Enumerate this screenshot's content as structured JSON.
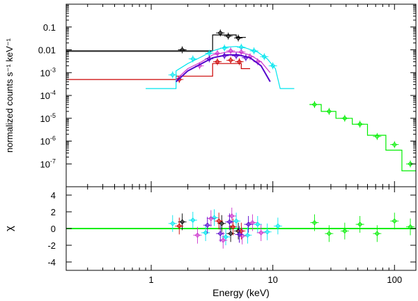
{
  "chart_data": [
    {
      "type": "scatter",
      "panel": "spectrum",
      "ylabel": "normalized counts s⁻¹ keV⁻¹",
      "xscale": "log",
      "yscale": "log",
      "xlim": [
        0.2,
        150
      ],
      "ylim": [
        1e-08,
        1.0
      ],
      "yticks": [
        {
          "value": 0.1,
          "mant": "0.1",
          "exp": ""
        },
        {
          "value": 0.01,
          "mant": "0.01",
          "exp": ""
        },
        {
          "value": 0.001,
          "mant": "10",
          "exp": "-3"
        },
        {
          "value": 0.0001,
          "mant": "10",
          "exp": "-4"
        },
        {
          "value": 1e-05,
          "mant": "10",
          "exp": "-5"
        },
        {
          "value": 1e-06,
          "mant": "10",
          "exp": "-6"
        },
        {
          "value": 1e-07,
          "mant": "10",
          "exp": "-7"
        }
      ],
      "series": [
        {
          "color": "#000000",
          "model": [
            [
              0.2,
              0.009
            ],
            [
              3.2,
              0.009
            ],
            [
              3.2,
              0.045
            ],
            [
              5.0,
              0.045
            ],
            [
              5.0,
              0.035
            ],
            [
              6.0,
              0.035
            ]
          ],
          "points": [
            [
              1.8,
              0.01
            ],
            [
              3.7,
              0.055
            ],
            [
              4.3,
              0.04
            ],
            [
              5.2,
              0.033
            ]
          ]
        },
        {
          "color": "#333333",
          "model": [
            [
              0.2,
              0.0085
            ],
            [
              3.2,
              0.0085
            ]
          ],
          "points": []
        },
        {
          "color": "#cc0000",
          "model": [
            [
              0.2,
              0.0005
            ],
            [
              1.6,
              0.0005
            ],
            [
              1.6,
              0.0007
            ],
            [
              3.2,
              0.0007
            ],
            [
              3.2,
              0.0025
            ],
            [
              5.5,
              0.0025
            ],
            [
              5.5,
              0.0015
            ],
            [
              6.5,
              0.0015
            ]
          ],
          "points": [
            [
              1.7,
              0.0005
            ],
            [
              3.5,
              0.003
            ],
            [
              4.5,
              0.0035
            ],
            [
              5.3,
              0.003
            ]
          ]
        },
        {
          "color": "#00e5ee",
          "model": [
            [
              0.9,
              0.0002
            ],
            [
              1.6,
              0.0002
            ],
            [
              1.6,
              0.0012
            ],
            [
              2.0,
              0.0025
            ],
            [
              2.6,
              0.005
            ],
            [
              3.2,
              0.009
            ],
            [
              4.0,
              0.013
            ],
            [
              5.0,
              0.014
            ],
            [
              6.0,
              0.012
            ],
            [
              7.5,
              0.008
            ],
            [
              9.0,
              0.004
            ],
            [
              10.5,
              0.0015
            ],
            [
              11.5,
              0.0002
            ],
            [
              15.0,
              0.0002
            ]
          ],
          "points": [
            [
              1.5,
              0.0008
            ],
            [
              2.2,
              0.004
            ],
            [
              3.0,
              0.007
            ],
            [
              4.0,
              0.012
            ],
            [
              5.5,
              0.013
            ],
            [
              7.0,
              0.009
            ],
            [
              8.5,
              0.005
            ],
            [
              10.0,
              0.002
            ]
          ]
        },
        {
          "color": "#cc33cc",
          "model": [
            [
              1.6,
              0.0005
            ],
            [
              2.0,
              0.0015
            ],
            [
              2.6,
              0.003
            ],
            [
              3.2,
              0.006
            ],
            [
              4.2,
              0.008
            ],
            [
              5.2,
              0.008
            ],
            [
              6.5,
              0.006
            ],
            [
              8.0,
              0.003
            ],
            [
              9.5,
              0.001
            ]
          ],
          "points": [
            [
              2.5,
              0.002
            ],
            [
              3.5,
              0.007
            ],
            [
              4.5,
              0.009
            ],
            [
              5.5,
              0.008
            ],
            [
              6.5,
              0.005
            ],
            [
              7.5,
              0.003
            ]
          ]
        },
        {
          "color": "#5500cc",
          "model": [
            [
              1.6,
              0.0004
            ],
            [
              2.0,
              0.0012
            ],
            [
              2.6,
              0.0025
            ],
            [
              3.2,
              0.0045
            ],
            [
              4.2,
              0.006
            ],
            [
              5.2,
              0.006
            ],
            [
              6.5,
              0.0045
            ],
            [
              8.0,
              0.002
            ],
            [
              9.5,
              0.0004
            ]
          ],
          "points": [
            [
              3.0,
              0.004
            ],
            [
              4.0,
              0.0055
            ],
            [
              5.0,
              0.0055
            ],
            [
              6.0,
              0.0045
            ]
          ]
        },
        {
          "color": "#00ee00",
          "model": [
            [
              20,
              4e-05
            ],
            [
              25,
              4e-05
            ],
            [
              25,
              2e-05
            ],
            [
              33,
              2e-05
            ],
            [
              33,
              1e-05
            ],
            [
              45,
              1e-05
            ],
            [
              45,
              5.5e-06
            ],
            [
              60,
              5.5e-06
            ],
            [
              60,
              1.8e-06
            ],
            [
              85,
              1.8e-06
            ],
            [
              85,
              4e-07
            ],
            [
              115,
              4e-07
            ],
            [
              115,
              5e-08
            ],
            [
              150,
              5e-08
            ]
          ],
          "points": [
            [
              22,
              4e-05
            ],
            [
              29,
              2e-05
            ],
            [
              39,
              1e-05
            ],
            [
              52,
              5.5e-06
            ],
            [
              72,
              1.6e-06
            ],
            [
              100,
              7e-07
            ],
            [
              135,
              1e-07
            ]
          ]
        }
      ]
    },
    {
      "type": "scatter",
      "panel": "residuals",
      "xlabel": "Energy (keV)",
      "ylabel": "χ",
      "xscale": "log",
      "xlim": [
        0.2,
        150
      ],
      "ylim": [
        -5,
        5
      ],
      "yticks": [
        4,
        2,
        0,
        -2,
        -4
      ],
      "xticks": [
        {
          "value": 1,
          "label": "1"
        },
        {
          "value": 10,
          "label": "10"
        },
        {
          "value": 100,
          "label": "100"
        }
      ],
      "reference_line": {
        "y": 0,
        "color": "#00ee00"
      },
      "series": [
        {
          "color": "#000000",
          "points": [
            [
              1.8,
              0.8
            ],
            [
              3.8,
              0.6
            ],
            [
              4.5,
              -0.6
            ],
            [
              5.2,
              -0.3
            ]
          ]
        },
        {
          "color": "#cc0000",
          "points": [
            [
              1.7,
              0.3
            ],
            [
              3.6,
              0.9
            ],
            [
              4.7,
              0.2
            ],
            [
              5.5,
              -0.3
            ]
          ]
        },
        {
          "color": "#00e5ee",
          "points": [
            [
              1.5,
              0.6
            ],
            [
              2.2,
              1.0
            ],
            [
              2.8,
              -0.5
            ],
            [
              3.3,
              1.3
            ],
            [
              4.1,
              -1.0
            ],
            [
              5.0,
              0.9
            ],
            [
              6.2,
              -0.8
            ],
            [
              7.5,
              0.5
            ],
            [
              9.0,
              -0.4
            ],
            [
              11.0,
              0.3
            ]
          ]
        },
        {
          "color": "#cc33cc",
          "points": [
            [
              2.4,
              -0.8
            ],
            [
              3.1,
              1.2
            ],
            [
              3.9,
              -1.4
            ],
            [
              4.6,
              1.5
            ],
            [
              5.6,
              -0.9
            ],
            [
              6.8,
              0.7
            ],
            [
              8.0,
              -0.5
            ]
          ]
        },
        {
          "color": "#5500cc",
          "points": [
            [
              2.9,
              0.4
            ],
            [
              3.7,
              -0.6
            ],
            [
              4.4,
              0.8
            ],
            [
              5.3,
              -0.7
            ],
            [
              6.3,
              0.5
            ]
          ]
        },
        {
          "color": "#00ee00",
          "points": [
            [
              22,
              0.7
            ],
            [
              29,
              -0.6
            ],
            [
              39,
              -0.3
            ],
            [
              52,
              0.5
            ],
            [
              72,
              -0.6
            ],
            [
              100,
              0.9
            ],
            [
              135,
              0.2
            ]
          ]
        }
      ]
    }
  ]
}
